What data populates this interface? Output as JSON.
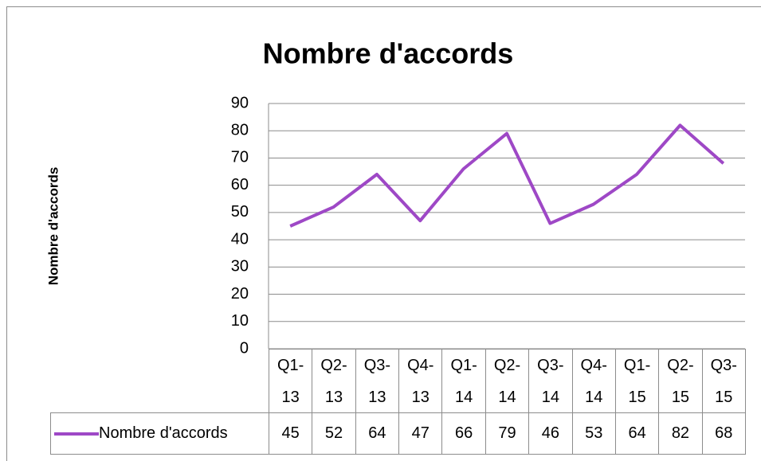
{
  "chart_data": {
    "type": "line",
    "title": "Nombre d'accords",
    "y_label": "Nombre d'accords",
    "categories": [
      "Q1-13",
      "Q2-13",
      "Q3-13",
      "Q4-13",
      "Q1-14",
      "Q2-14",
      "Q3-14",
      "Q4-14",
      "Q1-15",
      "Q2-15",
      "Q3-15"
    ],
    "series": [
      {
        "name": "Nombre d'accords",
        "color": "#9e48c6",
        "values": [
          45,
          52,
          64,
          47,
          66,
          79,
          46,
          53,
          64,
          82,
          68
        ]
      }
    ],
    "ylim": [
      0,
      90
    ],
    "yticks": [
      0,
      10,
      20,
      30,
      40,
      50,
      60,
      70,
      80,
      90
    ],
    "grid": true,
    "data_table": true
  }
}
